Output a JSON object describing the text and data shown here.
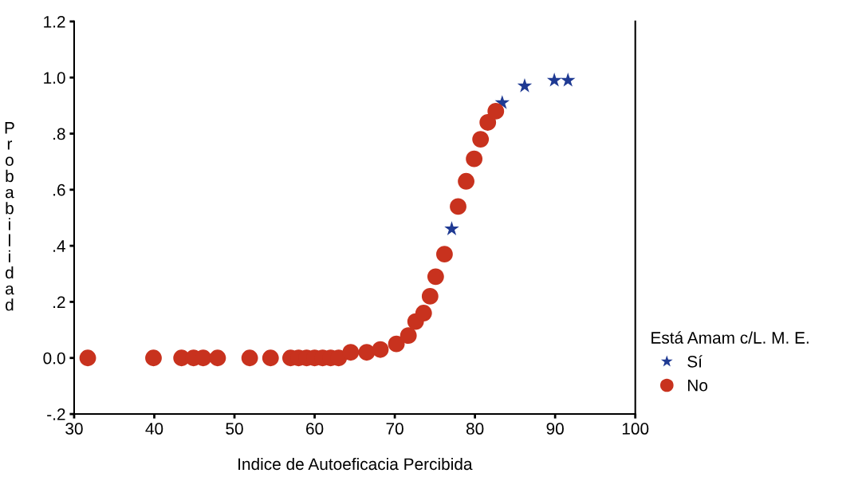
{
  "chart_data": {
    "type": "scatter",
    "xlabel": "Indice de Autoeficacia Percibida",
    "ylabel": "Probabilidad",
    "legend_title": "Está Amam c/L. M. E.",
    "legend": "right",
    "grid": false,
    "xlim": [
      30,
      100
    ],
    "xticks": [
      30,
      40,
      50,
      60,
      70,
      80,
      90,
      100
    ],
    "ylim": [
      -0.2,
      1.2
    ],
    "yticks": [
      {
        "value": -0.2,
        "label": "-.2"
      },
      {
        "value": 0,
        "label": "0.0"
      },
      {
        "value": 0.2,
        "label": ".2"
      },
      {
        "value": 0.4,
        "label": ".4"
      },
      {
        "value": 0.6,
        "label": ".6"
      },
      {
        "value": 0.8,
        "label": ".8"
      },
      {
        "value": 1.0,
        "label": "1.0"
      },
      {
        "value": 1.2,
        "label": "1.2"
      }
    ],
    "series": [
      {
        "name": "Sí",
        "color": "#1f3a93",
        "marker": "star",
        "x": [
          77.1,
          83.4,
          86.2,
          89.9,
          91.6
        ],
        "values": [
          0.46,
          0.91,
          0.97,
          0.99,
          0.99
        ]
      },
      {
        "name": "No",
        "color": "#c8321e",
        "marker": "circle",
        "x": [
          31.7,
          39.9,
          43.4,
          44.9,
          46.1,
          47.9,
          51.9,
          54.5,
          57,
          58,
          59,
          60,
          61,
          62,
          63,
          64.5,
          66.5,
          68.2,
          70.2,
          71.7,
          72.6,
          73.6,
          74.4,
          75.1,
          76.2,
          77.9,
          78.9,
          79.9,
          80.7,
          81.6,
          82.6
        ],
        "values": [
          0,
          0,
          0,
          0,
          0,
          0,
          0,
          0,
          0,
          0,
          0,
          0,
          0,
          0,
          0,
          0.02,
          0.02,
          0.03,
          0.05,
          0.08,
          0.13,
          0.16,
          0.22,
          0.29,
          0.37,
          0.54,
          0.63,
          0.71,
          0.78,
          0.84,
          0.88
        ]
      }
    ]
  }
}
